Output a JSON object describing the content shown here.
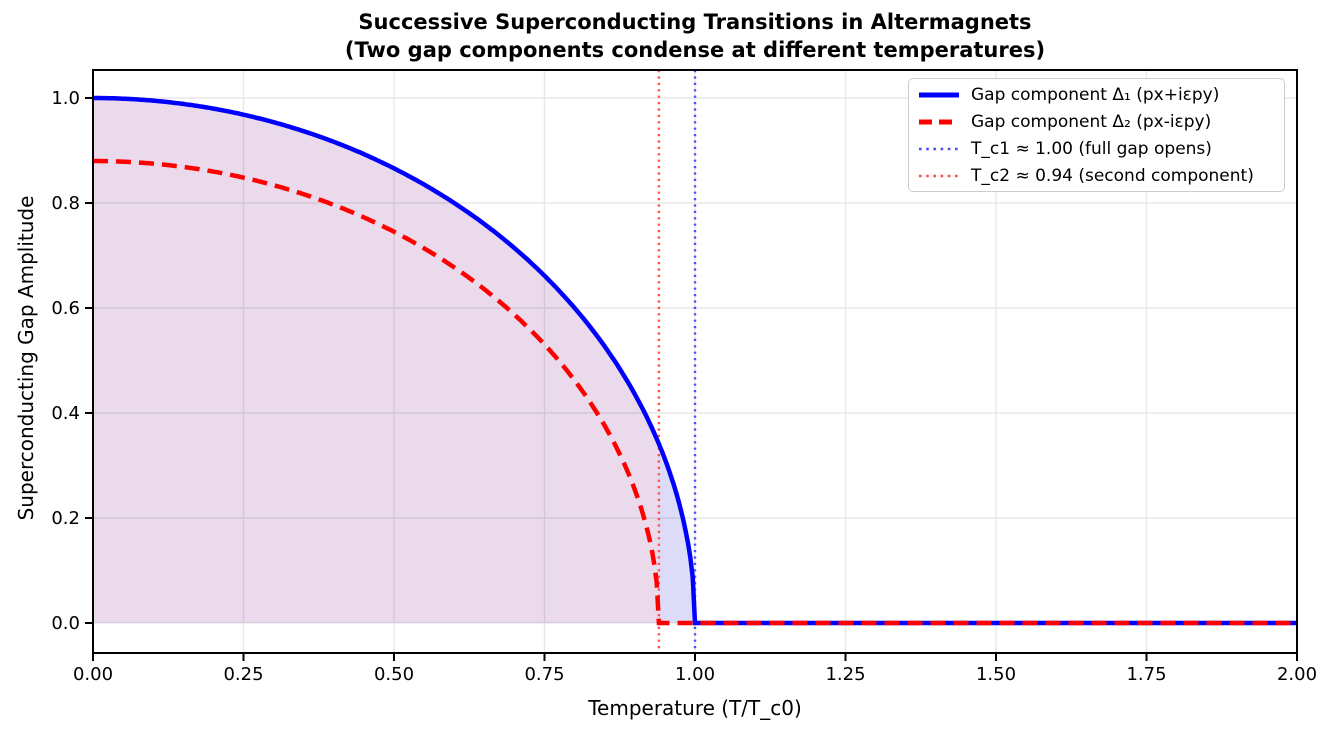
{
  "figure": {
    "title": "Successive Superconducting Transitions in Altermagnets",
    "subtitle": "(Two gap components condense at different temperatures)"
  },
  "chart_data": {
    "type": "line",
    "title": "Successive Superconducting Transitions in Altermagnets",
    "subtitle": "(Two gap components condense at different temperatures)",
    "xlabel": "Temperature (T/T_c0)",
    "ylabel": "Superconducting Gap Amplitude",
    "xlim": [
      0.0,
      2.0
    ],
    "ylim": [
      -0.05,
      1.05
    ],
    "grid": true,
    "legend_position": "upper right",
    "xticks": {
      "values": [
        0.0,
        0.25,
        0.5,
        0.75,
        1.0,
        1.25,
        1.5,
        1.75,
        2.0
      ],
      "labels": [
        "0.00",
        "0.25",
        "0.50",
        "0.75",
        "1.00",
        "1.25",
        "1.50",
        "1.75",
        "2.00"
      ]
    },
    "yticks": {
      "values": [
        0.0,
        0.2,
        0.4,
        0.6,
        0.8,
        1.0
      ],
      "labels": [
        "0.0",
        "0.2",
        "0.4",
        "0.6",
        "0.8",
        "1.0"
      ]
    },
    "series": [
      {
        "name": "Gap component Δ₁ (px+iεpy)",
        "color": "#0000ff",
        "line_style": "solid",
        "line_width": 4.5,
        "model": {
          "form": "delta0*sqrt(1-(T/tc)^2) for T<tc, else 0",
          "delta0": 1.0,
          "tc": 1.0
        },
        "fill_color": "#dcdcf8",
        "x": [
          0.0,
          0.1,
          0.2,
          0.3,
          0.4,
          0.5,
          0.6,
          0.7,
          0.8,
          0.9,
          0.95,
          1.0,
          1.25,
          1.5,
          1.75,
          2.0
        ],
        "y": [
          1.0,
          0.995,
          0.98,
          0.954,
          0.917,
          0.866,
          0.8,
          0.714,
          0.6,
          0.436,
          0.312,
          0.0,
          0.0,
          0.0,
          0.0,
          0.0
        ]
      },
      {
        "name": "Gap component Δ₂ (px-iεpy)",
        "color": "#ff0000",
        "line_style": "dashed",
        "line_width": 4.5,
        "model": {
          "form": "delta0*sqrt(1-(T/tc)^2) for T<tc, else 0",
          "delta0": 0.88,
          "tc": 0.94
        },
        "fill_color": "#ebdaec",
        "x": [
          0.0,
          0.1,
          0.2,
          0.3,
          0.4,
          0.5,
          0.6,
          0.7,
          0.8,
          0.9,
          0.94,
          1.0,
          1.25,
          1.5,
          1.75,
          2.0
        ],
        "y": [
          0.88,
          0.875,
          0.86,
          0.834,
          0.796,
          0.745,
          0.677,
          0.587,
          0.462,
          0.254,
          0.0,
          0.0,
          0.0,
          0.0,
          0.0,
          0.0
        ]
      }
    ],
    "vlines": [
      {
        "x": 1.0,
        "color": "#4d4dff",
        "line_style": "dotted",
        "label": "T_c1 ≈ 1.00 (full gap opens)"
      },
      {
        "x": 0.94,
        "color": "#ff4d4d",
        "line_style": "dotted",
        "label": "T_c2 ≈ 0.94 (second component)"
      }
    ]
  },
  "legend": {
    "entries": [
      {
        "label": "Gap component Δ₁ (px+iεpy)",
        "swatch": "solid",
        "color": "#0000ff"
      },
      {
        "label": "Gap component Δ₂ (px-iεpy)",
        "swatch": "dashed",
        "color": "#ff0000"
      },
      {
        "label": "T_c1 ≈ 1.00 (full gap opens)",
        "swatch": "dotted",
        "color": "#4d4dff"
      },
      {
        "label": "T_c2 ≈ 0.94 (second component)",
        "swatch": "dotted",
        "color": "#ff4d4d"
      }
    ]
  }
}
